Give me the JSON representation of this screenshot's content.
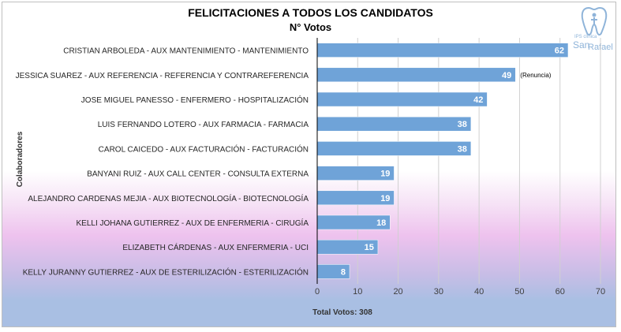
{
  "chart_data": {
    "type": "bar",
    "orientation": "horizontal",
    "title": "FELICITACIONES A TODOS LOS CANDIDATOS",
    "subtitle": "N° Votos",
    "ylabel": "Colaboradores",
    "xlabel": "Total Votos: 308",
    "xlim": [
      0,
      70
    ],
    "xticks": [
      0,
      10,
      20,
      30,
      40,
      50,
      60,
      70
    ],
    "grid": true,
    "bar_color": "#6fa3d8",
    "categories": [
      "CRISTIAN ARBOLEDA - AUX MANTENIMIENTO - MANTENIMIENTO",
      "JESSICA SUAREZ - AUX REFERENCIA - REFERENCIA Y CONTRAREFERENCIA",
      "JOSE MIGUEL PANESSO - ENFERMERO - HOSPITALIZACIÓN",
      "LUIS FERNANDO LOTERO - AUX FARMACIA - FARMACIA",
      "CAROL CAICEDO - AUX FACTURACIÓN - FACTURACIÓN",
      "BANYANI RUIZ - AUX CALL CENTER - CONSULTA EXTERNA",
      "ALEJANDRO CARDENAS MEJIA - AUX BIOTECNOLOGÍA - BIOTECNOLOGÍA",
      "KELLI JOHANA GUTIERREZ - AUX DE ENFERMERIA - CIRUGÍA",
      "ELIZABETH CÁRDENAS  - AUX ENFERMERIA - UCI",
      "KELLY JURANNY GUTIERREZ - AUX DE ESTERILIZACIÓN - ESTERILIZACIÓN"
    ],
    "values": [
      62,
      49,
      42,
      38,
      38,
      19,
      19,
      18,
      15,
      8
    ],
    "annotations": [
      {
        "category_index": 1,
        "text": "(Renuncia)"
      }
    ]
  },
  "logo": {
    "line1": "IPS clínica",
    "line2": "San",
    "line3": "Rafael",
    "color": "#8fb4d9"
  }
}
